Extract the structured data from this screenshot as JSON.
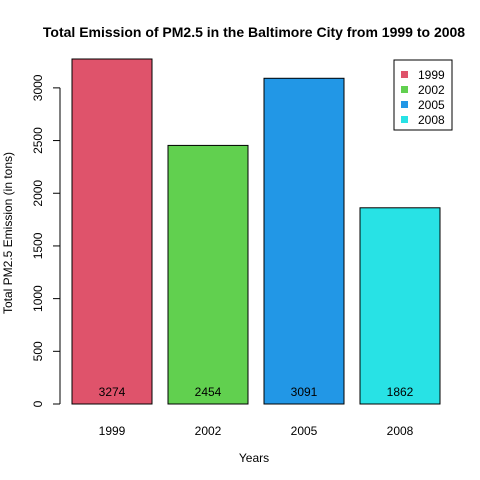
{
  "chart_data": {
    "type": "bar",
    "title": "Total Emission of PM2.5 in the Baltimore City from 1999 to 2008",
    "xlabel": "Years",
    "ylabel": "Total PM2.5 Emission (in tons)",
    "categories": [
      "1999",
      "2002",
      "2005",
      "2008"
    ],
    "values": [
      3274,
      2454,
      3091,
      1862
    ],
    "data_labels": [
      "3274",
      "2454",
      "3091",
      "1862"
    ],
    "colors": [
      "#DF536B",
      "#61D04F",
      "#2297E6",
      "#28E2E5"
    ],
    "ylim": [
      0,
      3274
    ],
    "yticks": [
      0,
      500,
      1000,
      1500,
      2000,
      2500,
      3000
    ],
    "ytick_labels": [
      "0",
      "500",
      "1000",
      "1500",
      "2000",
      "2500",
      "3000"
    ],
    "legend": {
      "placement": "top-right",
      "entries": [
        "1999",
        "2002",
        "2005",
        "2008"
      ]
    },
    "grid": false
  }
}
